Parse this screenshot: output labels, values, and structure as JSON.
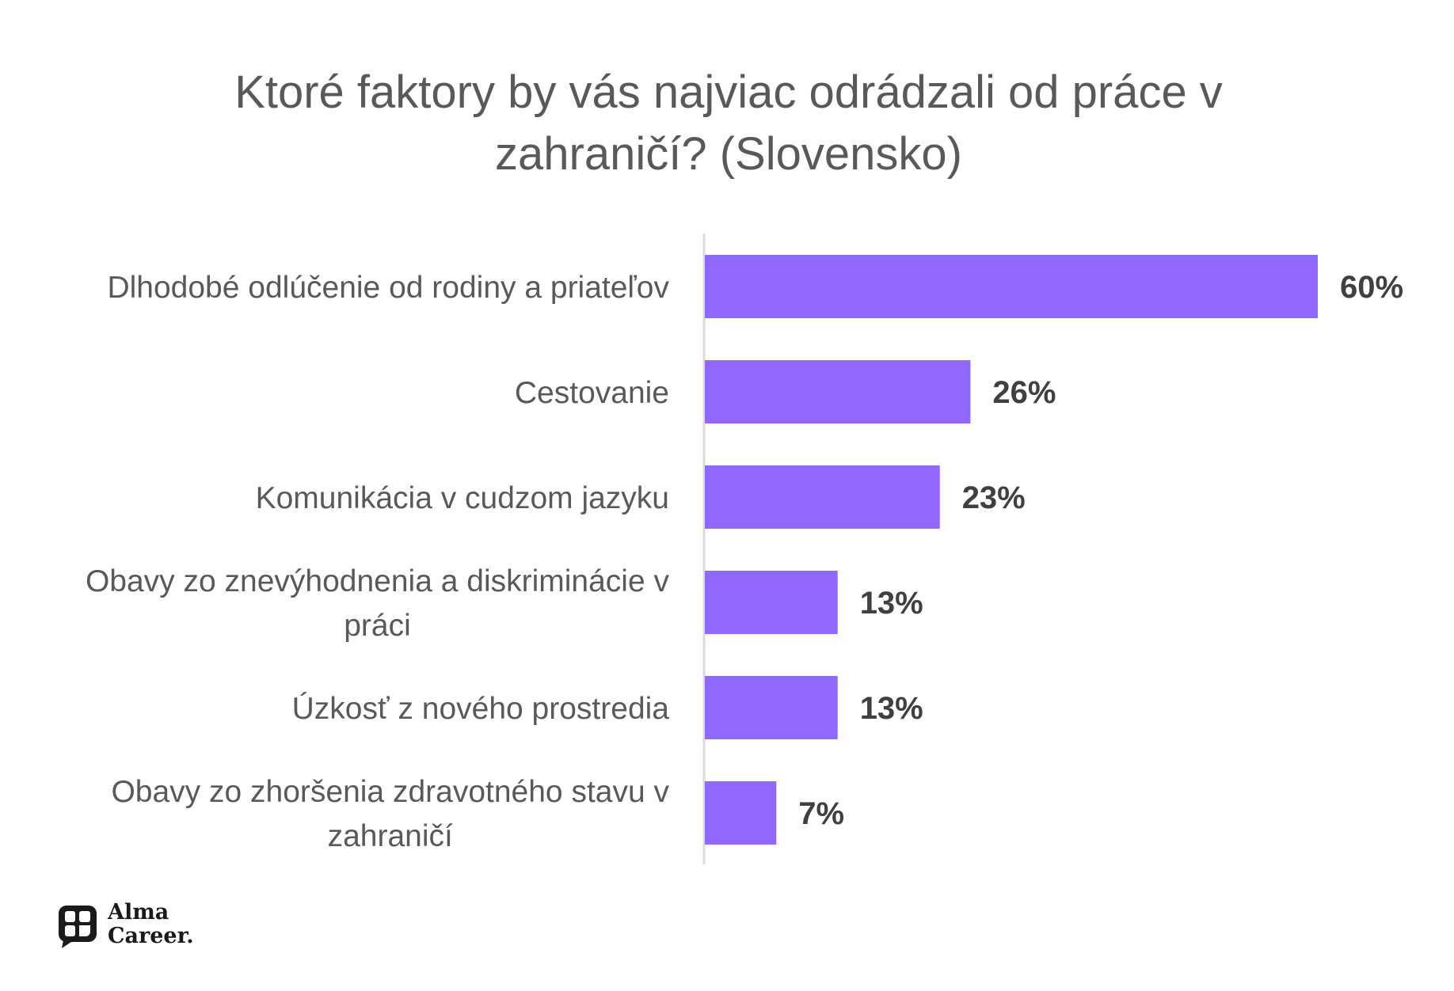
{
  "chart_data": {
    "type": "bar",
    "orientation": "horizontal",
    "title": "Ktoré faktory by vás najviac odrádzali od práce v zahraničí? (Slovensko)",
    "title_lines": [
      "Ktoré faktory by vás najviac odrádzali od práce v",
      "zahraničí? (Slovensko)"
    ],
    "categories": [
      "Dlhodobé odlúčenie od rodiny a priateľov",
      "Cestovanie",
      "Komunikácia v cudzom jazyku",
      "Obavy zo znevýhodnenia a diskriminácie v práci",
      "Úzkosť z nového prostredia",
      "Obavy zo zhoršenia zdravotného stavu v zahraničí"
    ],
    "category_lines": [
      [
        "Dlhodobé odlúčenie od rodiny a priateľov"
      ],
      [
        "Cestovanie"
      ],
      [
        "Komunikácia v cudzom jazyku"
      ],
      [
        "Obavy zo znevýhodnenia a diskriminácie v",
        "práci"
      ],
      [
        "Úzkosť z nového prostredia"
      ],
      [
        "Obavy zo zhoršenia zdravotného stavu v",
        "zahraničí"
      ]
    ],
    "values": [
      60,
      26,
      23,
      13,
      13,
      7
    ],
    "value_labels": [
      "60%",
      "26%",
      "23%",
      "13%",
      "13%",
      "7%"
    ],
    "unit": "%",
    "xlim": [
      0,
      60
    ],
    "bar_color": "#9068FF",
    "grid": false,
    "legend": "none"
  },
  "brand": {
    "logo_line1": "Alma",
    "logo_line2": "Career."
  }
}
